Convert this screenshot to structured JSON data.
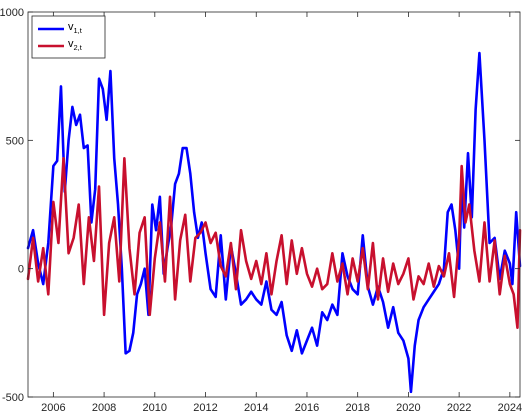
{
  "chart_data": {
    "type": "line",
    "title": "",
    "xlabel": "",
    "ylabel": "",
    "xlim": [
      2005.0,
      2024.4
    ],
    "ylim": [
      -500,
      1000
    ],
    "xticks": [
      2006,
      2008,
      2010,
      2012,
      2014,
      2016,
      2018,
      2020,
      2022,
      2024
    ],
    "yticks": [
      -500,
      0,
      500,
      1000
    ],
    "grid": false,
    "legend": "top-left",
    "series": [
      {
        "name": "v",
        "subscript": "1,t",
        "color": "#0000ff",
        "x": [
          2005.0,
          2005.2,
          2005.4,
          2005.6,
          2005.8,
          2006.0,
          2006.15,
          2006.3,
          2006.45,
          2006.6,
          2006.75,
          2006.9,
          2007.05,
          2007.2,
          2007.35,
          2007.5,
          2007.65,
          2007.8,
          2007.95,
          2008.1,
          2008.25,
          2008.4,
          2008.55,
          2008.7,
          2008.85,
          2009.0,
          2009.15,
          2009.3,
          2009.45,
          2009.6,
          2009.75,
          2009.9,
          2010.05,
          2010.2,
          2010.35,
          2010.5,
          2010.65,
          2010.8,
          2010.95,
          2011.1,
          2011.25,
          2011.4,
          2011.55,
          2011.7,
          2011.85,
          2012.0,
          2012.2,
          2012.4,
          2012.6,
          2012.8,
          2013.0,
          2013.2,
          2013.4,
          2013.6,
          2013.8,
          2014.0,
          2014.2,
          2014.4,
          2014.6,
          2014.8,
          2015.0,
          2015.2,
          2015.4,
          2015.6,
          2015.8,
          2016.0,
          2016.2,
          2016.4,
          2016.6,
          2016.8,
          2017.0,
          2017.2,
          2017.4,
          2017.6,
          2017.8,
          2018.0,
          2018.2,
          2018.4,
          2018.6,
          2018.8,
          2019.0,
          2019.2,
          2019.4,
          2019.6,
          2019.8,
          2020.0,
          2020.1,
          2020.25,
          2020.4,
          2020.6,
          2020.8,
          2021.0,
          2021.2,
          2021.4,
          2021.55,
          2021.7,
          2021.85,
          2022.0,
          2022.1,
          2022.2,
          2022.35,
          2022.5,
          2022.65,
          2022.8,
          2023.0,
          2023.2,
          2023.4,
          2023.6,
          2023.8,
          2024.0,
          2024.1,
          2024.25,
          2024.4
        ],
        "y": [
          80,
          150,
          20,
          -60,
          100,
          400,
          420,
          710,
          300,
          500,
          630,
          560,
          600,
          470,
          480,
          180,
          310,
          740,
          700,
          580,
          770,
          430,
          250,
          0,
          -330,
          -320,
          -250,
          -100,
          -60,
          0,
          -180,
          250,
          150,
          280,
          -20,
          80,
          170,
          330,
          370,
          470,
          470,
          370,
          220,
          120,
          180,
          60,
          -80,
          -110,
          130,
          -120,
          90,
          -20,
          -140,
          -120,
          -90,
          -120,
          -140,
          -50,
          -160,
          -180,
          -130,
          -260,
          -320,
          -240,
          -330,
          -280,
          -230,
          -300,
          -170,
          -200,
          -140,
          -180,
          60,
          -30,
          -80,
          -100,
          130,
          -70,
          -140,
          -70,
          -130,
          -230,
          -150,
          -250,
          -280,
          -350,
          -480,
          -300,
          -200,
          -150,
          -120,
          -90,
          -60,
          0,
          220,
          250,
          150,
          0,
          350,
          160,
          450,
          200,
          620,
          840,
          500,
          100,
          120,
          -40,
          70,
          20,
          -60,
          220,
          10
        ]
      },
      {
        "name": "v",
        "subscript": "2,t",
        "color": "#c8102e",
        "x": [
          2005.0,
          2005.2,
          2005.4,
          2005.6,
          2005.8,
          2006.0,
          2006.2,
          2006.4,
          2006.6,
          2006.8,
          2007.0,
          2007.2,
          2007.4,
          2007.6,
          2007.8,
          2008.0,
          2008.2,
          2008.4,
          2008.6,
          2008.8,
          2009.0,
          2009.2,
          2009.4,
          2009.6,
          2009.8,
          2010.0,
          2010.2,
          2010.4,
          2010.6,
          2010.8,
          2011.0,
          2011.2,
          2011.4,
          2011.6,
          2011.8,
          2012.0,
          2012.2,
          2012.4,
          2012.6,
          2012.8,
          2013.0,
          2013.2,
          2013.4,
          2013.6,
          2013.8,
          2014.0,
          2014.2,
          2014.4,
          2014.6,
          2014.8,
          2015.0,
          2015.2,
          2015.4,
          2015.6,
          2015.8,
          2016.0,
          2016.2,
          2016.4,
          2016.6,
          2016.8,
          2017.0,
          2017.2,
          2017.4,
          2017.6,
          2017.8,
          2018.0,
          2018.2,
          2018.4,
          2018.6,
          2018.8,
          2019.0,
          2019.2,
          2019.4,
          2019.6,
          2019.8,
          2020.0,
          2020.2,
          2020.4,
          2020.6,
          2020.8,
          2021.0,
          2021.2,
          2021.4,
          2021.6,
          2021.8,
          2022.0,
          2022.1,
          2022.25,
          2022.4,
          2022.6,
          2022.8,
          2023.0,
          2023.2,
          2023.4,
          2023.6,
          2023.8,
          2024.0,
          2024.15,
          2024.3,
          2024.4
        ],
        "y": [
          -40,
          120,
          -50,
          80,
          -100,
          260,
          100,
          430,
          60,
          120,
          250,
          -60,
          200,
          30,
          320,
          -180,
          100,
          200,
          -50,
          430,
          80,
          -100,
          140,
          200,
          -180,
          40,
          180,
          -50,
          280,
          -120,
          110,
          210,
          -50,
          120,
          140,
          180,
          100,
          140,
          10,
          -30,
          100,
          -80,
          150,
          30,
          -40,
          30,
          -60,
          60,
          -100,
          30,
          130,
          -60,
          110,
          -20,
          80,
          -20,
          -70,
          0,
          -80,
          -60,
          60,
          -50,
          20,
          -100,
          40,
          -50,
          80,
          -80,
          100,
          -120,
          40,
          -90,
          20,
          -60,
          -20,
          40,
          -120,
          -30,
          -60,
          20,
          -70,
          10,
          -30,
          60,
          -110,
          120,
          400,
          180,
          250,
          70,
          -50,
          180,
          -50,
          110,
          -100,
          50,
          -60,
          -100,
          -230,
          150
        ]
      }
    ]
  }
}
